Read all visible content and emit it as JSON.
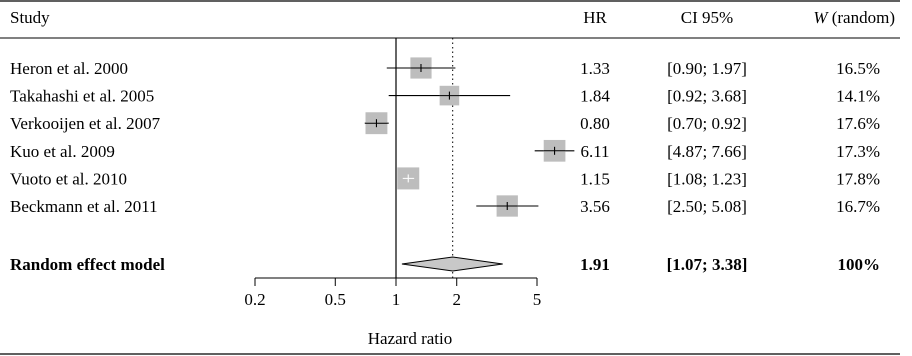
{
  "columns": {
    "study": "Study",
    "hr": "HR",
    "ci": "CI 95%",
    "weight_italic": "W",
    "weight_rest": " (random)"
  },
  "studies": [
    {
      "name": "Heron et al. 2000",
      "hr_text": "1.33",
      "ci_text": "[0.90; 1.97]",
      "weight_text": "16.5%"
    },
    {
      "name": "Takahashi et al. 2005",
      "hr_text": "1.84",
      "ci_text": "[0.92; 3.68]",
      "weight_text": "14.1%"
    },
    {
      "name": "Verkooijen et al. 2007",
      "hr_text": "0.80",
      "ci_text": "[0.70; 0.92]",
      "weight_text": "17.6%"
    },
    {
      "name": "Kuo et al. 2009",
      "hr_text": "6.11",
      "ci_text": "[4.87; 7.66]",
      "weight_text": "17.3%"
    },
    {
      "name": "Vuoto et al. 2010",
      "hr_text": "1.15",
      "ci_text": "[1.08; 1.23]",
      "weight_text": "17.8%"
    },
    {
      "name": "Beckmann et al. 2011",
      "hr_text": "3.56",
      "ci_text": "[2.50; 5.08]",
      "weight_text": "16.7%"
    }
  ],
  "summary": {
    "name": "Random effect model",
    "hr_text": "1.91",
    "ci_text": "[1.07; 3.38]",
    "weight_text": "100%"
  },
  "colors": {
    "box": "#bdbdbd",
    "diamond": "#c8c8c8",
    "line": "#000000"
  },
  "chart_data": {
    "type": "forest",
    "x_scale": "log",
    "xlabel": "Hazard ratio",
    "xlim": [
      0.2,
      5
    ],
    "x_ticks": [
      0.2,
      0.5,
      1,
      2,
      5
    ],
    "x_tick_labels": [
      "0.2",
      "0.5",
      "1",
      "2",
      "5"
    ],
    "reference_line": 1,
    "pooled_line": 1.91,
    "series": [
      {
        "study": "Heron et al. 2000",
        "hr": 1.33,
        "lower": 0.9,
        "upper": 1.97,
        "weight": 16.5
      },
      {
        "study": "Takahashi et al. 2005",
        "hr": 1.84,
        "lower": 0.92,
        "upper": 3.68,
        "weight": 14.1
      },
      {
        "study": "Verkooijen et al. 2007",
        "hr": 0.8,
        "lower": 0.7,
        "upper": 0.92,
        "weight": 17.6
      },
      {
        "study": "Kuo et al. 2009",
        "hr": 6.11,
        "lower": 4.87,
        "upper": 7.66,
        "weight": 17.3
      },
      {
        "study": "Vuoto et al. 2010",
        "hr": 1.15,
        "lower": 1.08,
        "upper": 1.23,
        "weight": 17.8
      },
      {
        "study": "Beckmann et al. 2011",
        "hr": 3.56,
        "lower": 2.5,
        "upper": 5.08,
        "weight": 16.7
      }
    ],
    "pooled": {
      "hr": 1.91,
      "lower": 1.07,
      "upper": 3.38,
      "weight": 100
    }
  }
}
